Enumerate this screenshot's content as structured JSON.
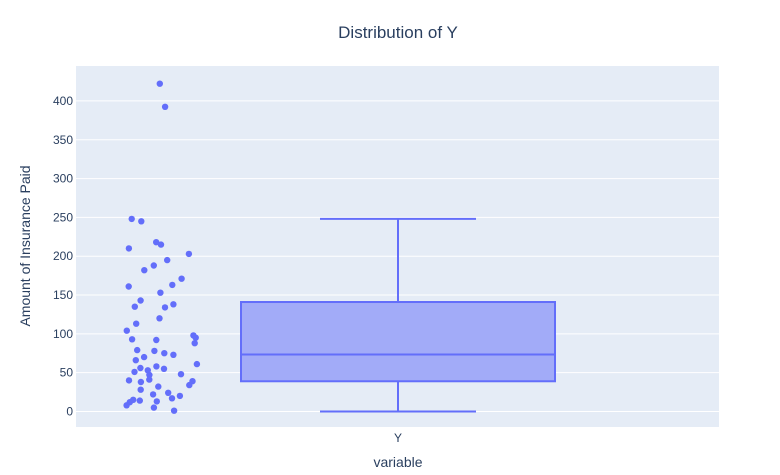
{
  "chart_data": {
    "type": "box",
    "title": "Distribution of Y",
    "xlabel": "variable",
    "ylabel": "Amount of Insurance Paid",
    "categories": [
      "Y"
    ],
    "ylim": [
      -20,
      445
    ],
    "yticks": [
      0,
      50,
      100,
      150,
      200,
      250,
      300,
      350,
      400
    ],
    "grid": true,
    "colors": {
      "plot_bg": "#e5ecf6",
      "grid": "#ffffff",
      "box_fill": "#a2abf8",
      "box_line": "#636efa",
      "points": "#636efa"
    },
    "box": {
      "category": "Y",
      "lowerfence": 0,
      "q1": 38.9,
      "median": 73.4,
      "q3": 141.0,
      "upperfence": 248.1
    },
    "points": [
      422.2,
      392.5,
      248.1,
      245.0,
      218.0,
      215.0,
      210.0,
      203.0,
      195.0,
      188.0,
      182.0,
      171.0,
      163.0,
      161.0,
      153.0,
      143.0,
      138.0,
      135.0,
      134.0,
      120.0,
      113.0,
      104.0,
      98.0,
      95.0,
      93.0,
      92.0,
      88.0,
      79.0,
      78.0,
      75.0,
      73.0,
      70.0,
      66.0,
      61.0,
      58.0,
      56.0,
      55.0,
      53.0,
      51.0,
      48.0,
      47.0,
      41.0,
      40.0,
      39.0,
      38.0,
      34.0,
      32.0,
      28.0,
      24.0,
      22.0,
      20.0,
      17.0,
      15.0,
      14.0,
      13.0,
      12.0,
      8.0,
      5.0,
      1.0
    ]
  }
}
